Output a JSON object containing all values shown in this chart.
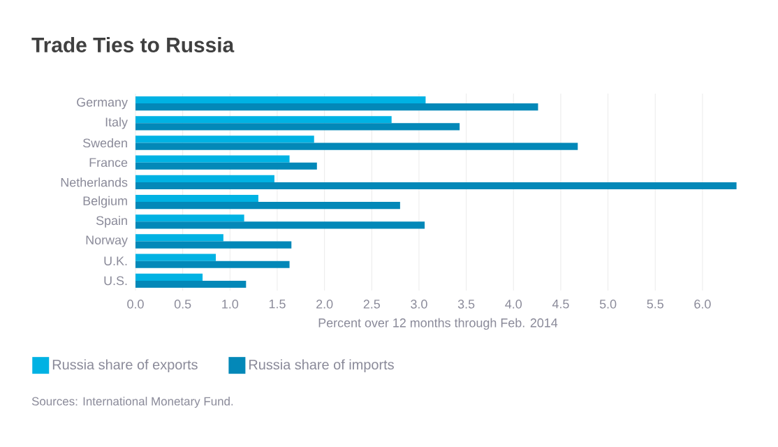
{
  "chart_data": {
    "type": "bar",
    "orientation": "horizontal",
    "title": "Trade Ties to Russia",
    "xlabel": "Percent over 12 months through Feb. 2014",
    "categories": [
      "Germany",
      "Italy",
      "Sweden",
      "France",
      "Netherlands",
      "Belgium",
      "Spain",
      "Norway",
      "U.K.",
      "U.S."
    ],
    "series": [
      {
        "name": "Russia share of exports",
        "color": "#00b2e3",
        "values": [
          3.07,
          2.71,
          1.89,
          1.63,
          1.47,
          1.3,
          1.15,
          0.93,
          0.85,
          0.71
        ]
      },
      {
        "name": "Russia share of imports",
        "color": "#0388b8",
        "values": [
          4.26,
          3.43,
          4.68,
          1.92,
          6.36,
          2.8,
          3.06,
          1.65,
          1.63,
          1.17
        ]
      }
    ],
    "xlim": [
      0,
      6.4
    ],
    "xticks": [
      {
        "value": 0,
        "label": "0.0"
      },
      {
        "value": 0.5,
        "label": "0.5"
      },
      {
        "value": 1,
        "label": "1.0"
      },
      {
        "value": 1.5,
        "label": "1.5"
      },
      {
        "value": 2,
        "label": "2.0"
      },
      {
        "value": 2.5,
        "label": "2.5"
      },
      {
        "value": 3,
        "label": "3.0"
      },
      {
        "value": 3.5,
        "label": "3.5"
      },
      {
        "value": 4,
        "label": "4.0"
      },
      {
        "value": 4.5,
        "label": "4.5"
      },
      {
        "value": 5,
        "label": "5.0"
      },
      {
        "value": 5.5,
        "label": "5.5"
      },
      {
        "value": 6,
        "label": "6.0"
      }
    ],
    "grid": "x",
    "legend": "bottom",
    "annotations": [
      "Sources: International Monetary Fund."
    ]
  }
}
